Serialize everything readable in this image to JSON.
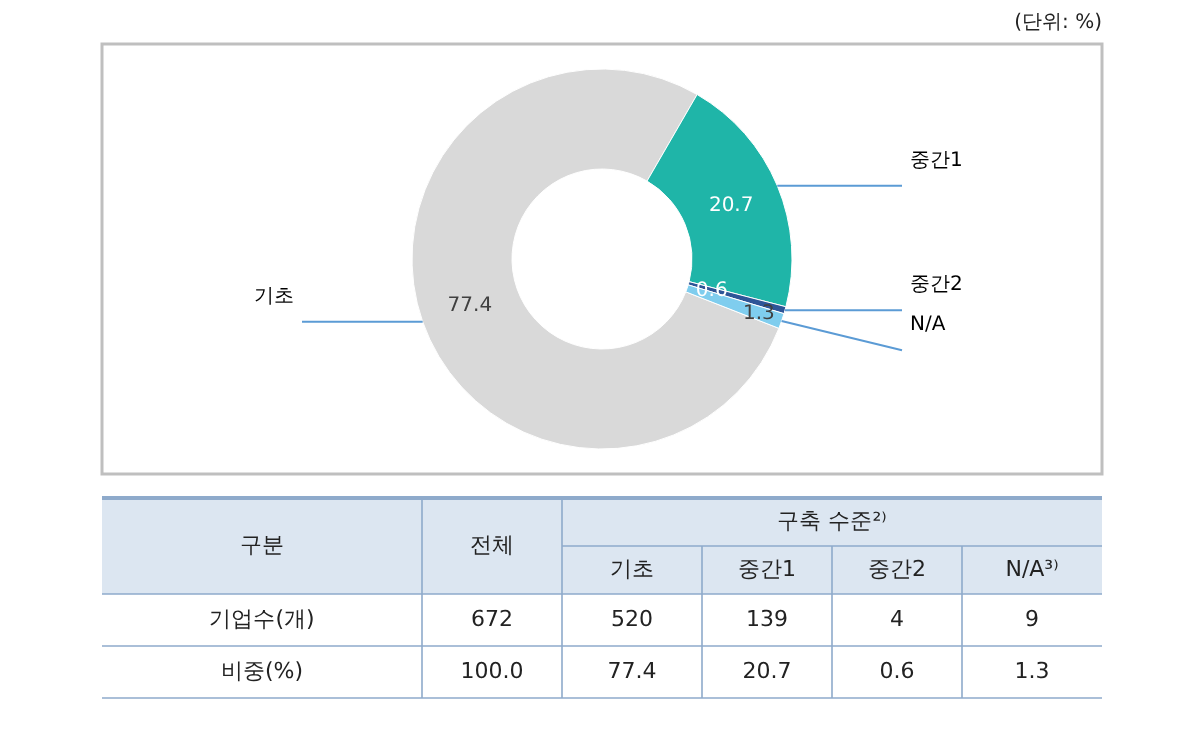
{
  "chart_data": {
    "type": "donut",
    "categories": [
      "기초",
      "중간1",
      "중간2",
      "N/A"
    ],
    "values": [
      77.4,
      20.7,
      0.6,
      1.3
    ],
    "colors": [
      "#d9d9d9",
      "#1fb5a8",
      "#2e5597",
      "#7fcdee"
    ],
    "data_labels": true,
    "legend": false,
    "annotations": [
      "(단위: %)",
      "구분",
      "전체",
      "구축 수준²⁾",
      "기초",
      "중간1",
      "중간2",
      "N/A³⁾",
      "기업수(개)",
      "672",
      "520",
      "139",
      "4",
      "9",
      "비중(%)",
      "100.0",
      "77.4",
      "20.7",
      "0.6",
      "1.3"
    ]
  }
}
